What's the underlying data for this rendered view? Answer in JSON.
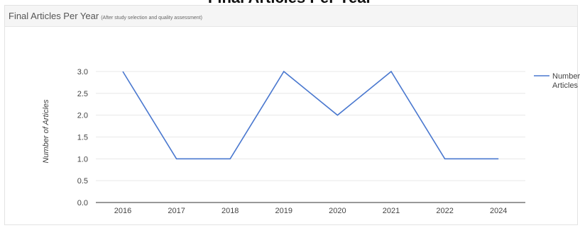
{
  "window": {
    "clipped_title": "Final Articles Per Year"
  },
  "panel": {
    "title": "Final Articles Per Year",
    "subtitle": "(After study selection and quality assessment)"
  },
  "colors": {
    "series": "#4a78cf",
    "grid": "#e8e8e8",
    "axis": "#333333"
  },
  "chart_data": {
    "type": "line",
    "title": "Final Articles Per Year",
    "subtitle": "(After study selection and quality assessment)",
    "xlabel": "",
    "ylabel": "Number of Articles",
    "categories": [
      "2016",
      "2017",
      "2018",
      "2019",
      "2020",
      "2021",
      "2022",
      "2024"
    ],
    "series": [
      {
        "name": "Number Articles",
        "values": [
          3,
          1,
          1,
          3,
          2,
          3,
          1,
          1
        ]
      }
    ],
    "ylim": [
      0,
      3
    ],
    "yticks": [
      "0.0",
      "0.5",
      "1.0",
      "1.5",
      "2.0",
      "2.5",
      "3.0"
    ],
    "grid": true,
    "legend": "right",
    "legend_lines": [
      "Number",
      "Articles"
    ]
  }
}
